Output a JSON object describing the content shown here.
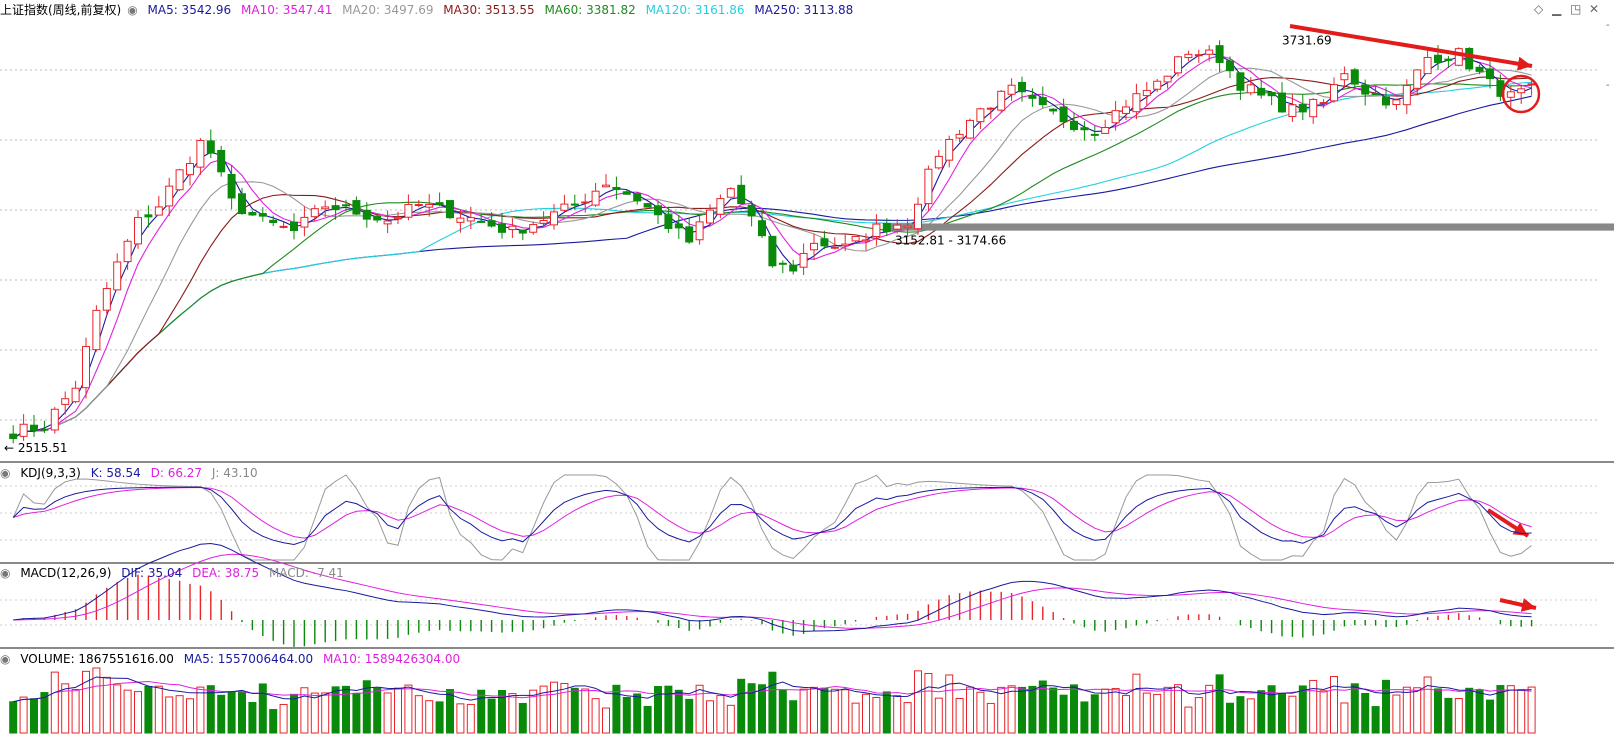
{
  "colors": {
    "up": "#e8242a",
    "down": "#0a8a0a",
    "ma5": "#1a1aa0",
    "ma10": "#e020e0",
    "ma20": "#999999",
    "ma30": "#8b1a1a",
    "ma60": "#1f8a1f",
    "ma120": "#22d0e0",
    "ma250": "#1a1a9e",
    "annotation": "#e21b1b",
    "support_band": "#888888"
  },
  "main_header": {
    "name": "上证指数(周线,前复权)",
    "items": [
      {
        "label": "MA5: 3542.96",
        "color": "#1a1aa0"
      },
      {
        "label": "MA10: 3547.41",
        "color": "#e020e0"
      },
      {
        "label": "MA20: 3497.69",
        "color": "#999999"
      },
      {
        "label": "MA30: 3513.55",
        "color": "#8b1a1a"
      },
      {
        "label": "MA60: 3381.82",
        "color": "#1f8a1f"
      },
      {
        "label": "MA120: 3161.86",
        "color": "#22d0e0"
      },
      {
        "label": "MA250: 3113.88",
        "color": "#1a1a9e"
      }
    ]
  },
  "kdj_header": {
    "name": "KDJ(9,3,3)",
    "items": [
      {
        "label": "K: 58.54",
        "color": "#1a1aa0"
      },
      {
        "label": "D: 66.27",
        "color": "#e020e0"
      },
      {
        "label": "J: 43.10",
        "color": "#888888"
      }
    ]
  },
  "macd_header": {
    "name": "MACD(12,26,9)",
    "items": [
      {
        "label": "DIF: 35.04",
        "color": "#1a1aa0"
      },
      {
        "label": "DEA: 38.75",
        "color": "#e020e0"
      },
      {
        "label": "MACD: -7.41",
        "color": "#888888"
      }
    ]
  },
  "volume_header": {
    "name": "VOLUME: 1867551616.00",
    "items": [
      {
        "label": "MA5: 1557006464.00",
        "color": "#1a1aa0"
      },
      {
        "label": "MA10: 1589426304.00",
        "color": "#e020e0"
      }
    ]
  },
  "chart_data": {
    "type": "candlestick",
    "title": "上证指数(周线,前复权)",
    "annotations": {
      "high": 3731.69,
      "high_label": "3731.69",
      "low": 2515.51,
      "low_label": "← 2515.51",
      "support_range": [
        3152.81,
        3174.66
      ],
      "support_label": "3152.81 - 3174.66"
    },
    "price_range": [
      2470,
      3800
    ],
    "candles": []
  }
}
